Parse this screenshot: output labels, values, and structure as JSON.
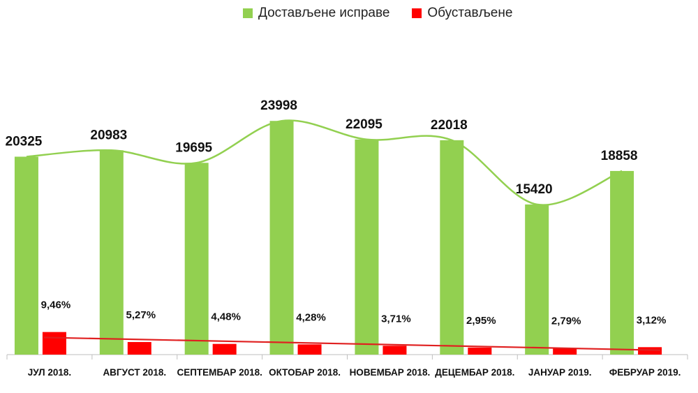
{
  "chart_data": {
    "type": "bar",
    "categories": [
      "ЈУЛ 2018.",
      "АВГУСТ 2018.",
      "СЕПТЕМБАР 2018.",
      "ОКТОБАР 2018.",
      "НОВЕМБАР 2018.",
      "ДЕЦЕМБАР 2018.",
      "ЈАНУАР 2019.",
      "ФЕБРУАР 2019."
    ],
    "series": [
      {
        "name": "Достављене исправе",
        "color": "#92d050",
        "values": [
          20325,
          20983,
          19695,
          23998,
          22095,
          22018,
          15420,
          18858
        ],
        "labels": [
          "20325",
          "20983",
          "19695",
          "23998",
          "22095",
          "22018",
          "15420",
          "18858"
        ]
      },
      {
        "name": "Обустављене",
        "color": "#ff0000",
        "values": [
          9.46,
          5.27,
          4.48,
          4.28,
          3.71,
          2.95,
          2.79,
          3.12
        ],
        "labels": [
          "9,46%",
          "5,27%",
          "4,48%",
          "4,28%",
          "3,71%",
          "2,95%",
          "2,79%",
          "3,12%"
        ]
      }
    ],
    "trendlines": [
      {
        "series": "Достављене исправе",
        "style": "smooth",
        "color": "#92d050"
      },
      {
        "series": "Обустављене",
        "style": "linear",
        "color": "#e02020"
      }
    ],
    "legend_position": "top",
    "grid": false
  }
}
